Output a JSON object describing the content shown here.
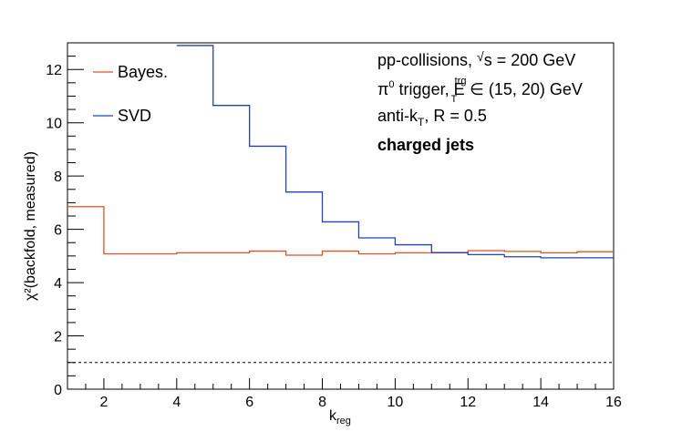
{
  "chart_data": {
    "type": "step",
    "xlabel": "k",
    "xlabel_subscript": "reg",
    "ylabel": "χ²(backfold, measured)",
    "xlim": [
      1,
      16
    ],
    "ylim": [
      0,
      13
    ],
    "x_ticks": [
      2,
      4,
      6,
      8,
      10,
      12,
      14,
      16
    ],
    "y_ticks": [
      0,
      2,
      4,
      6,
      8,
      10,
      12
    ],
    "bin_edges": [
      1,
      2,
      3,
      4,
      5,
      6,
      7,
      8,
      9,
      10,
      11,
      12,
      13,
      14,
      15,
      16
    ],
    "series": [
      {
        "name": "Bayes.",
        "color": "#e8501e",
        "values": [
          6.85,
          5.08,
          5.08,
          5.12,
          5.12,
          5.18,
          5.03,
          5.18,
          5.08,
          5.12,
          5.13,
          5.2,
          5.17,
          5.12,
          5.16
        ]
      },
      {
        "name": "SVD",
        "color": "#1f3fd6",
        "values": [
          null,
          null,
          null,
          12.9,
          10.65,
          9.12,
          7.4,
          6.28,
          5.68,
          5.42,
          5.12,
          5.05,
          4.97,
          4.93,
          4.93
        ]
      }
    ],
    "reference_line": {
      "y": 1,
      "style": "dashed",
      "color": "#000000"
    },
    "legend_placement": "top-left",
    "annotations": [
      {
        "text": "pp-collisions, √s = 200 GeV"
      },
      {
        "text": "π⁰ trigger, E_T^trg ∈ (15, 20) GeV",
        "sup": "0",
        "sub": "T",
        "sup2": "trg"
      },
      {
        "text": "anti-k_T, R = 0.5",
        "sub": "T"
      },
      {
        "text": "charged jets",
        "bold": true
      }
    ]
  }
}
